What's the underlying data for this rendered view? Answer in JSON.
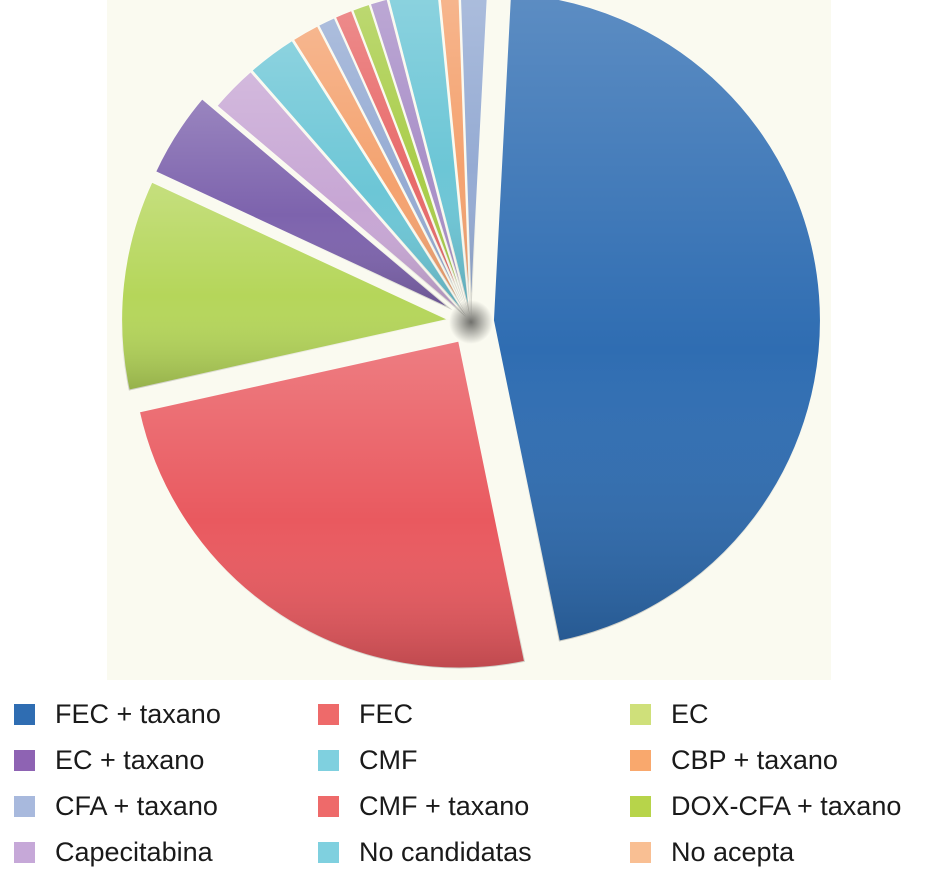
{
  "chart_data": {
    "type": "pie",
    "title": "",
    "slices": [
      {
        "name": "FEC + taxano",
        "value": 46.4,
        "color": "#2f6db2",
        "exploded": true
      },
      {
        "name": "FEC",
        "value": 25.0,
        "color": "#e9595f",
        "exploded": true
      },
      {
        "name": "EC",
        "value": 10.5,
        "color": "#b5d65a",
        "exploded": true
      },
      {
        "name": "EC + taxano",
        "value": 4.3,
        "color": "#7d63ad",
        "exploded": true
      },
      {
        "name": "Capecitabina",
        "value": 2.4,
        "color": "#c7a6d4",
        "exploded": false
      },
      {
        "name": "No candidatas",
        "value": 2.5,
        "color": "#6cc6d6",
        "exploded": false
      },
      {
        "name": "CBP + taxano",
        "value": 1.4,
        "color": "#f4a26f",
        "exploded": false
      },
      {
        "name": "CFA + taxano",
        "value": 0.9,
        "color": "#95abd3",
        "exploded": false
      },
      {
        "name": "CMF + taxano",
        "value": 0.9,
        "color": "#e86a6a",
        "exploded": false
      },
      {
        "name": "DOX-CFA + taxano",
        "value": 0.9,
        "color": "#a9cd49",
        "exploded": false
      },
      {
        "name": "Capecitabina",
        "value": 0.9,
        "color": "#a98fc8",
        "exploded": false
      },
      {
        "name": "CMF",
        "value": 2.5,
        "color": "#6cc6d6",
        "exploded": false
      },
      {
        "name": "No acepta",
        "value": 1.0,
        "color": "#f4a26f",
        "exploded": false
      },
      {
        "name": "CFA + taxano",
        "value": 1.4,
        "color": "#95abd3",
        "exploded": false
      }
    ],
    "legend": {
      "placement": "bottom",
      "entries": [
        {
          "label": "FEC + taxano",
          "color": "#2f6db2"
        },
        {
          "label": "FEC",
          "color": "#ee6a6a"
        },
        {
          "label": "EC",
          "color": "#cfe07a"
        },
        {
          "label": "EC + taxano",
          "color": "#8e63b3"
        },
        {
          "label": "CMF",
          "color": "#7fd0df"
        },
        {
          "label": "CBP + taxano",
          "color": "#f9a86d"
        },
        {
          "label": "CFA + taxano",
          "color": "#a8b9dd"
        },
        {
          "label": "CMF + taxano",
          "color": "#ee6a6a"
        },
        {
          "label": "DOX-CFA + taxano",
          "color": "#b7d44a"
        },
        {
          "label": "Capecitabina",
          "color": "#c6a8d8"
        },
        {
          "label": "No candidatas",
          "color": "#7fd0df"
        },
        {
          "label": "No acepta",
          "color": "#f9bf93"
        }
      ]
    }
  }
}
